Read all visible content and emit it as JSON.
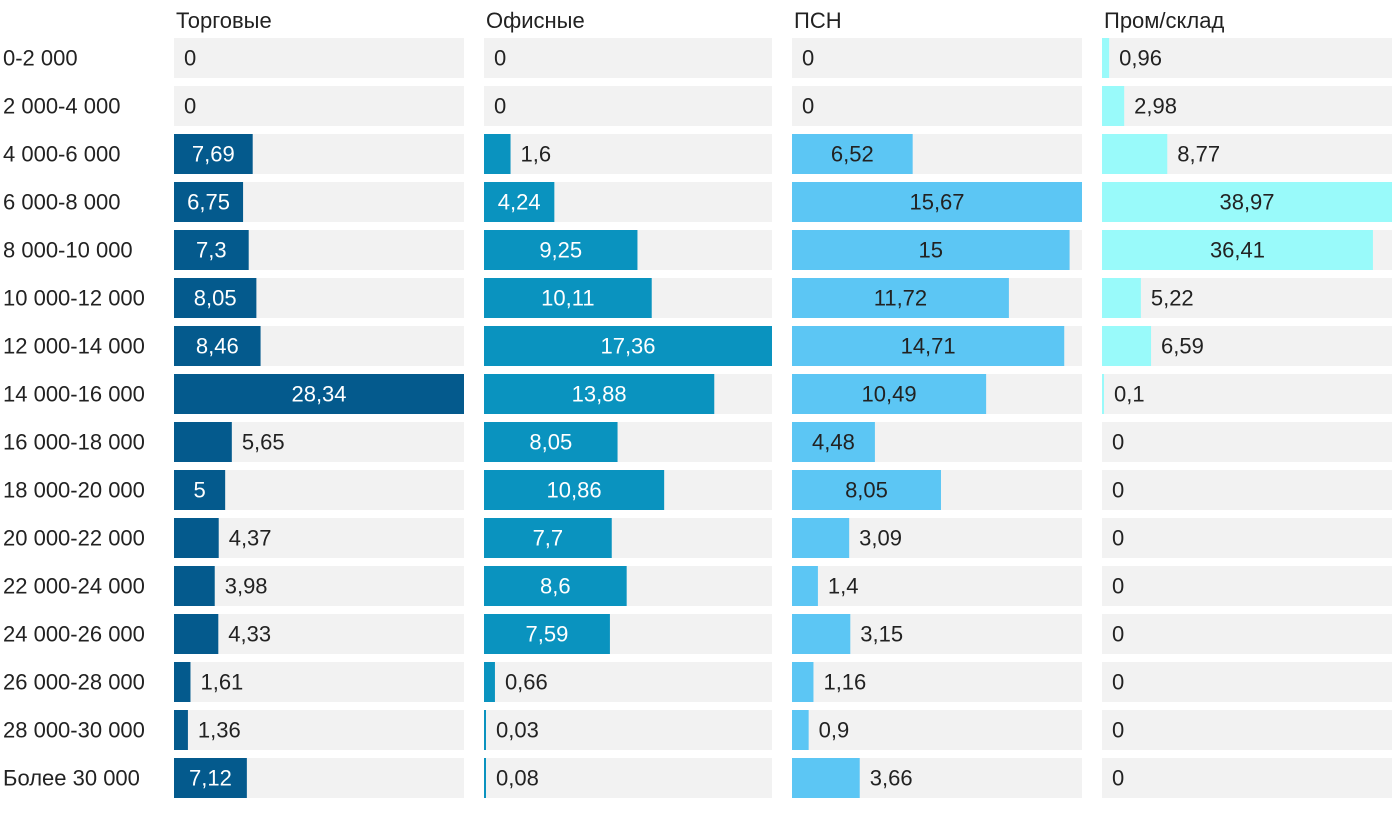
{
  "chart_data": {
    "type": "bar",
    "orientation": "horizontal",
    "layout": "small-multiples",
    "categories": [
      "0-2 000",
      "2 000-4 000",
      "4 000-6 000",
      "6 000-8 000",
      "8 000-10 000",
      "10 000-12 000",
      "12 000-14 000",
      "14 000-16 000",
      "16 000-18 000",
      "18 000-20 000",
      "20 000-22 000",
      "22 000-24 000",
      "24 000-26 000",
      "26 000-28 000",
      "28 000-30 000",
      "Более 30 000"
    ],
    "series": [
      {
        "name": "Торговые",
        "color": "#045a8d",
        "values": [
          0,
          0,
          7.69,
          6.75,
          7.3,
          8.05,
          8.46,
          28.34,
          5.65,
          5,
          4.37,
          3.98,
          4.33,
          1.61,
          1.36,
          7.12
        ],
        "labels": [
          "0",
          "0",
          "7,69",
          "6,75",
          "7,3",
          "8,05",
          "8,46",
          "28,34",
          "5,65",
          "5",
          "4,37",
          "3,98",
          "4,33",
          "1,61",
          "1,36",
          "7,12"
        ]
      },
      {
        "name": "Офисные",
        "color": "#0a93bf",
        "values": [
          0,
          0,
          1.6,
          4.24,
          9.25,
          10.11,
          17.36,
          13.88,
          8.05,
          10.86,
          7.7,
          8.6,
          7.59,
          0.66,
          0.03,
          0.08
        ],
        "labels": [
          "0",
          "0",
          "1,6",
          "4,24",
          "9,25",
          "10,11",
          "17,36",
          "13,88",
          "8,05",
          "10,86",
          "7,7",
          "8,6",
          "7,59",
          "0,66",
          "0,03",
          "0,08"
        ]
      },
      {
        "name": "ПСН",
        "color": "#5cc6f4",
        "values": [
          0,
          0,
          6.52,
          15.67,
          15,
          11.72,
          14.71,
          10.49,
          4.48,
          8.05,
          3.09,
          1.4,
          3.15,
          1.16,
          0.9,
          3.66
        ],
        "labels": [
          "0",
          "0",
          "6,52",
          "15,67",
          "15",
          "11,72",
          "14,71",
          "10,49",
          "4,48",
          "8,05",
          "3,09",
          "1,4",
          "3,15",
          "1,16",
          "0,9",
          "3,66"
        ]
      },
      {
        "name": "Пром/склад",
        "color": "#99fafa",
        "values": [
          0.96,
          2.98,
          8.77,
          38.97,
          36.41,
          5.22,
          6.59,
          0.1,
          0,
          0,
          0,
          0,
          0,
          0,
          0,
          0
        ],
        "labels": [
          "0,96",
          "2,98",
          "8,77",
          "38,97",
          "36,41",
          "5,22",
          "6,59",
          "0,1",
          "0",
          "0",
          "0",
          "0",
          "0",
          "0",
          "0",
          "0"
        ]
      }
    ],
    "background_color": "#f2f2f2",
    "grid": false,
    "legend": "none"
  }
}
